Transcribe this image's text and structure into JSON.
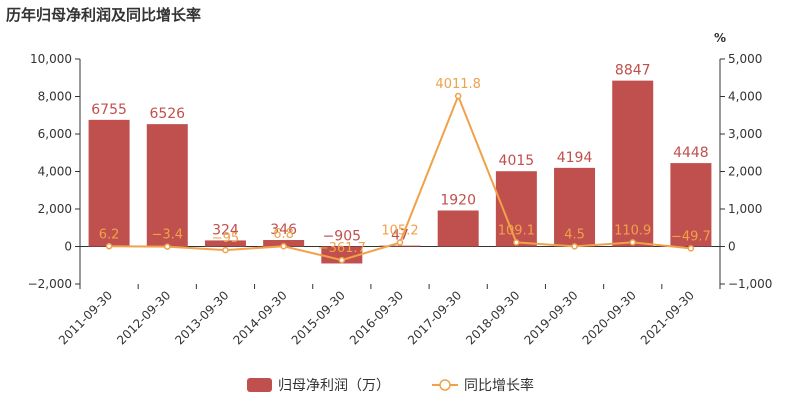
{
  "chart_data": {
    "type": "bar",
    "title": "历年归母净利润及同比增长率",
    "categories": [
      "2011-09-30",
      "2012-09-30",
      "2013-09-30",
      "2014-09-30",
      "2015-09-30",
      "2016-09-30",
      "2017-09-30",
      "2018-09-30",
      "2019-09-30",
      "2020-09-30",
      "2021-09-30"
    ],
    "series": [
      {
        "name": "归母净利润（万）",
        "type": "bar",
        "axis": "left",
        "color": "#c0504d",
        "values": [
          6755,
          6526,
          324,
          346,
          -905,
          47,
          1920,
          4015,
          4194,
          8847,
          4448
        ],
        "labels": [
          "6755",
          "6526",
          "324",
          "346",
          "−905",
          "47",
          "1920",
          "4015",
          "4194",
          "8847",
          "4448"
        ]
      },
      {
        "name": "同比增长率",
        "type": "line",
        "axis": "right",
        "color": "#f0a14a",
        "values": [
          6.2,
          -3.4,
          -95,
          6.8,
          -361.7,
          105.2,
          4011.8,
          109.1,
          4.5,
          110.9,
          -49.7
        ],
        "labels": [
          "6.2",
          "−3.4",
          "−95",
          "6.8",
          "−361.7",
          "105.2",
          "4011.8",
          "109.1",
          "4.5",
          "110.9",
          "−49.7"
        ]
      }
    ],
    "y_left": {
      "ylim": [
        -2000,
        10000
      ],
      "ticks": [
        "−2,000",
        "0",
        "2,000",
        "4,000",
        "6,000",
        "8,000",
        "10,000"
      ],
      "tick_values": [
        -2000,
        0,
        2000,
        4000,
        6000,
        8000,
        10000
      ]
    },
    "y_right": {
      "ylim": [
        -1000,
        5000
      ],
      "unit": "%",
      "ticks": [
        "−1,000",
        "0",
        "1,000",
        "2,000",
        "3,000",
        "4,000",
        "5,000"
      ],
      "tick_values": [
        -1000,
        0,
        1000,
        2000,
        3000,
        4000,
        5000
      ]
    },
    "grid": false,
    "legend": "bottom"
  }
}
